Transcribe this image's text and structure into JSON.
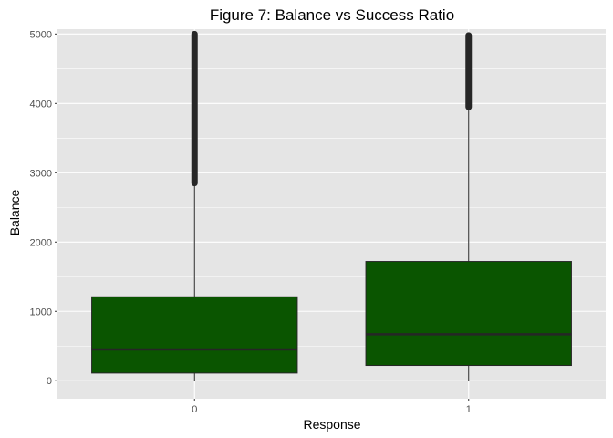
{
  "chart_data": {
    "type": "boxplot",
    "title": "Figure 7: Balance vs Success Ratio",
    "xlabel": "Response",
    "ylabel": "Balance",
    "categories": [
      "0",
      "1"
    ],
    "ylim": [
      -260,
      5070
    ],
    "yticks": [
      0,
      1000,
      2000,
      3000,
      4000,
      5000
    ],
    "grid": true,
    "fill_color": "#0a5500",
    "outline_color": "#262626",
    "panel_color": "#e5e5e5",
    "grid_color": "#ffffff",
    "boxes": [
      {
        "category": "0",
        "min": 0,
        "q1": 110,
        "median": 450,
        "q3": 1210,
        "whisker_high": 2850,
        "outliers_from": 2850,
        "outliers_to": 5000
      },
      {
        "category": "1",
        "min": 0,
        "q1": 220,
        "median": 670,
        "q3": 1720,
        "whisker_high": 3950,
        "outliers_from": 3950,
        "outliers_to": 4980
      }
    ]
  }
}
